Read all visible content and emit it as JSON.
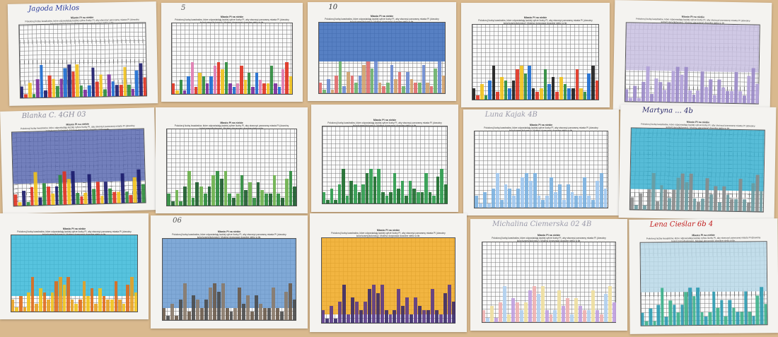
{
  "worksheet": {
    "title": "Miasto PI na niebie",
    "instructions": "Pokoloruj liczbę kwadratów, które odpowiadają każdej cyfrze liczby PI, aby stworzyć panoramę miasta PI (dowolny kolor/czarny/kolorowy). Możesz dorysować dowolne niebo w tle."
  },
  "pi_digits": "31415926535897932384626433832795028841971693993751",
  "sheets": [
    {
      "handwriting": "Jagoda Miklos",
      "ink": "#2a3a9a",
      "sky": "",
      "sky_fraction": 0,
      "bar_colors": [
        "#1a1a6a",
        "#e0301e",
        "#f2c21a",
        "#2a8a3a",
        "#7a2a9a",
        "#1a6ad0"
      ]
    },
    {
      "handwriting": "5",
      "ink": "#555",
      "sky": "",
      "sky_fraction": 0,
      "bar_colors": [
        "#e0301e",
        "#f2c21a",
        "#2a8a3a",
        "#7a2a9a",
        "#1a6ad0",
        "#e07ab0"
      ]
    },
    {
      "handwriting": "10",
      "ink": "#333",
      "sky": "#3a6ab8",
      "sky_fraction": 0.55,
      "bar_colors": [
        "#e06a6a",
        "#6ab06a",
        "#6a8ad0",
        "#d0a06a"
      ]
    },
    {
      "handwriting": "",
      "ink": "#333",
      "sky": "",
      "sky_fraction": 0,
      "bar_colors": [
        "#1a1a1a",
        "#e0301e",
        "#f2c21a",
        "#2a8a3a",
        "#1a6ad0"
      ]
    },
    {
      "handwriting": "",
      "ink": "#333",
      "sky": "#c8c0e0",
      "sky_fraction": 0.6,
      "bar_colors": [
        "#9a8ac8",
        "#b0a0d8"
      ]
    },
    {
      "handwriting": "Blanka C. 4GH 03",
      "ink": "#8a8a9a",
      "sky": "#5a6ab0",
      "sky_fraction": 0.7,
      "bar_colors": [
        "#e0301e",
        "#f2c21a",
        "#1a1a6a",
        "#2a8a3a"
      ]
    },
    {
      "handwriting": "",
      "ink": "#333",
      "sky": "",
      "sky_fraction": 0,
      "bar_colors": [
        "#2a8a3a",
        "#1a5a2a",
        "#6ab04a"
      ]
    },
    {
      "handwriting": "",
      "ink": "#333",
      "sky": "",
      "sky_fraction": 0,
      "bar_colors": [
        "#2a9a4a",
        "#1a6a2a"
      ]
    },
    {
      "handwriting": "Luna Kajak 4B",
      "ink": "#9a9aaa",
      "sky": "",
      "sky_fraction": 0,
      "bar_colors": [
        "#7ab0e0",
        "#a0c8f0"
      ]
    },
    {
      "handwriting": "Martyna ... 4b",
      "ink": "#2a2a6a",
      "sky": "#3ab0d0",
      "sky_fraction": 0.75,
      "bar_colors": [
        "#8a8a8a",
        "#6a9aa0"
      ]
    },
    {
      "handwriting": "",
      "ink": "#333",
      "sky": "#3ab8d8",
      "sky_fraction": 0.8,
      "bar_colors": [
        "#e8a020",
        "#f2c21a",
        "#e06a1a"
      ]
    },
    {
      "handwriting": "06",
      "ink": "#555",
      "sky": "#6a9ad0",
      "sky_fraction": 0.85,
      "bar_colors": [
        "#6a5a4a",
        "#4a4a4a",
        "#8a7a6a"
      ]
    },
    {
      "handwriting": "",
      "ink": "#333",
      "sky": "#f0a820",
      "sky_fraction": 0.9,
      "bar_colors": [
        "#5a3a8a",
        "#3a2a6a"
      ]
    },
    {
      "handwriting": "Michalina Ciemerska 02 4B",
      "ink": "#9a9aaa",
      "sky": "",
      "sky_fraction": 0,
      "bar_colors": [
        "#f0b0b0",
        "#b0d0f0",
        "#f0e0a0",
        "#c0a0e0"
      ]
    },
    {
      "handwriting": "Lena Cieślar 6b 4",
      "ink": "#c01a1a",
      "sky": "#b8d8e8",
      "sky_fraction": 0.6,
      "bar_colors": [
        "#2a9ab0",
        "#3ab08a"
      ]
    }
  ]
}
